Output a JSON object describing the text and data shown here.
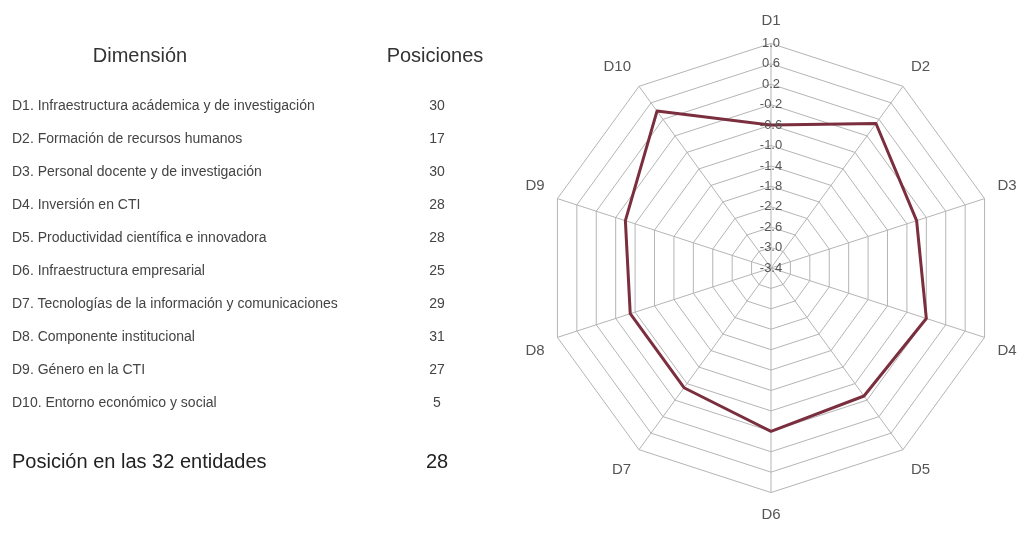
{
  "chart_data": [
    {
      "type": "other",
      "annotations": [
        "Dimensión",
        "Posiciones"
      ],
      "categories": [
        "D1. Infraestructura acádemica y de investigación",
        "D2. Formación de recursos humanos",
        "D3. Personal docente y de investigación",
        "D4. Inversión en CTI",
        "D5. Productividad científica e innovadora",
        "D6. Infraestructura empresarial",
        "D7. Tecnologías de la información y comunicaciones",
        "D8. Componente institucional",
        "D9. Género en la CTI",
        "D10. Entorno económico y social",
        "Posición en las 32 entidades"
      ],
      "values": [
        30,
        17,
        30,
        28,
        28,
        25,
        29,
        31,
        27,
        5,
        28
      ],
      "data_labels": true
    },
    {
      "type": "radar",
      "categories": [
        "D1",
        "D2",
        "D3",
        "D4",
        "D5",
        "D6",
        "D7",
        "D8",
        "D9",
        "D10"
      ],
      "series": [
        {
          "color": "#7a2e3e",
          "values": [
            -0.6,
            0.1,
            -0.4,
            -0.2,
            -0.3,
            -0.2,
            -0.5,
            -0.5,
            -0.4,
            0.4
          ]
        }
      ],
      "ylim": [
        -3.4,
        1.0
      ],
      "yticks": [
        {
          "value": 1.0,
          "label": "1.0"
        },
        0.6,
        0.2,
        -0.2,
        -0.6,
        {
          "value": -1.0,
          "label": "-1.0"
        },
        -1.4,
        -1.8,
        -2.2,
        -2.6,
        {
          "value": -3.0,
          "label": "-3.0"
        },
        -3.4
      ],
      "grid": true,
      "legend": false,
      "marker": "none",
      "line_style": "solid"
    }
  ]
}
